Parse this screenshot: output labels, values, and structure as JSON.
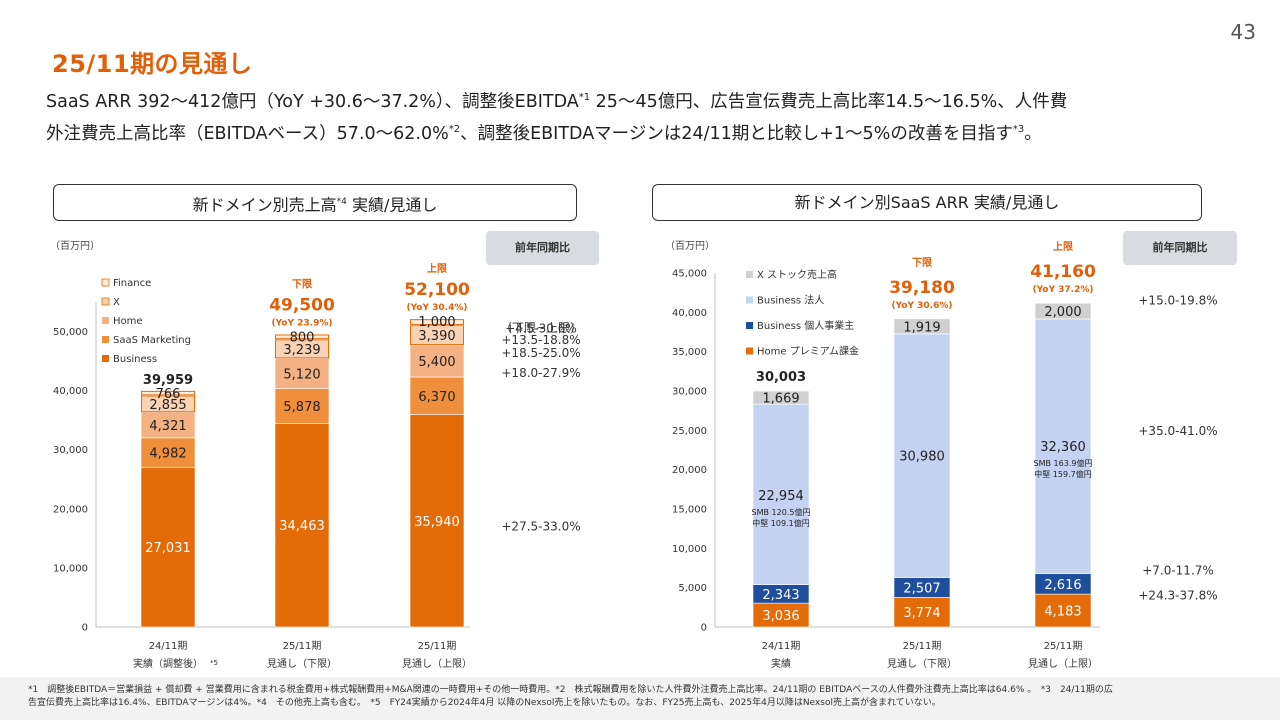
{
  "page_number": "43",
  "title": "25/11期の見通し",
  "subtitle": {
    "line1_a": "SaaS ARR 392〜412億円（YoY +30.6〜37.2%）、調整後EBITDA",
    "line1_sup": "*1",
    "line1_b": " 25〜45億円、広告宣伝費売上高比率14.5〜16.5%、人件費",
    "line2_a": "外注費売上高比率（EBITDAベース）57.0〜62.0%",
    "line2_sup": "*2",
    "line2_b": "、調整後EBITDAマージンは24/11期と比較し+1〜5%の改善を目指す",
    "line2_sup2": "*3",
    "line2_c": "。"
  },
  "yoy_header": "前年同期比",
  "colors": {
    "business": "#e36c09",
    "saas_marketing": "#ef8f3c",
    "home": "#f4b183",
    "x": "#fad2b4",
    "finance": "#fdecd9",
    "arr_home": "#e36c09",
    "arr_individual": "#1f4e9c",
    "arr_corporate": "#c5d3f3",
    "arr_xstock": "#d0d0d0",
    "accent": "#e0600a"
  },
  "chart_data": [
    {
      "type": "bar",
      "stacked": true,
      "title": "新ドメイン別売上高",
      "title_sup": "*4",
      "title_b": " 実績/見通し",
      "unit": "（百万円）",
      "ylim": [
        0,
        55000
      ],
      "yticks": [
        0,
        10000,
        20000,
        30000,
        40000,
        50000
      ],
      "ytick_labels": [
        "0",
        "10,000",
        "20,000",
        "30,000",
        "40,000",
        "50,000"
      ],
      "categories": [
        "24/11期",
        "25/11期",
        "25/11期"
      ],
      "category_sub": [
        "実績（調整後）",
        "見通し（下限）",
        "見通し（上限）"
      ],
      "category_note": "*5",
      "legend_position": "top-left",
      "series": [
        {
          "name": "Business",
          "color_key": "business",
          "values": [
            27031,
            34463,
            35940
          ],
          "labels": [
            "27,031",
            "34,463",
            "35,940"
          ]
        },
        {
          "name": "SaaS Marketing",
          "color_key": "saas_marketing",
          "values": [
            4982,
            5878,
            6370
          ],
          "labels": [
            "4,982",
            "5,878",
            "6,370"
          ]
        },
        {
          "name": "Home",
          "color_key": "home",
          "values": [
            4321,
            5120,
            5400
          ],
          "labels": [
            "4,321",
            "5,120",
            "5,400"
          ]
        },
        {
          "name": "X",
          "color_key": "x",
          "values": [
            2855,
            3239,
            3390
          ],
          "labels": [
            "2,855",
            "3,239",
            "3,390"
          ]
        },
        {
          "name": "Finance",
          "color_key": "finance",
          "values": [
            766,
            800,
            1000
          ],
          "labels": [
            "766",
            "800",
            "1,000"
          ]
        }
      ],
      "totals": [
        "39,959",
        "49,500",
        "52,100"
      ],
      "total_tags": [
        "",
        "下限",
        "上限"
      ],
      "total_yoy": [
        "",
        "(YoY 23.9%)",
        "(YoY 30.4%)"
      ],
      "yoy_ranges": [
        {
          "text": "（下限~上限）",
          "value": 50600
        },
        {
          "text": "+4.5-30.6%",
          "value": 50500
        },
        {
          "text": "+13.5-18.8%",
          "value": 48600
        },
        {
          "text": "+18.5-25.0%",
          "value": 46400
        },
        {
          "text": "+18.0-27.9%",
          "value": 43000
        },
        {
          "text": "+27.5-33.0%",
          "value": 17000
        }
      ]
    },
    {
      "type": "bar",
      "stacked": true,
      "title": "新ドメイン別SaaS ARR 実績/見通し",
      "unit": "（百万円）",
      "ylim": [
        0,
        45000
      ],
      "yticks": [
        0,
        5000,
        10000,
        15000,
        20000,
        25000,
        30000,
        35000,
        40000,
        45000
      ],
      "ytick_labels": [
        "0",
        "5,000",
        "10,000",
        "15,000",
        "20,000",
        "25,000",
        "30,000",
        "35,000",
        "40,000",
        "45,000"
      ],
      "categories": [
        "24/11期",
        "25/11期",
        "25/11期"
      ],
      "category_sub": [
        "実績",
        "見通し（下限）",
        "見通し（上限）"
      ],
      "legend_position": "top-left",
      "series": [
        {
          "name": "Home プレミアム課金",
          "color_key": "arr_home",
          "values": [
            3036,
            3774,
            4183
          ],
          "labels": [
            "3,036",
            "3,774",
            "4,183"
          ]
        },
        {
          "name": "Business 個人事業主",
          "color_key": "arr_individual",
          "values": [
            2343,
            2507,
            2616
          ],
          "labels": [
            "2,343",
            "2,507",
            "2,616"
          ]
        },
        {
          "name": "Business 法人",
          "color_key": "arr_corporate",
          "values": [
            22954,
            30980,
            32360
          ],
          "labels": [
            "22,954",
            "30,980",
            "32,360"
          ],
          "sublabels": [
            [
              "SMB 120.5億円",
              "中堅 109.1億円"
            ],
            [],
            [
              "SMB 163.9億円",
              "中堅 159.7億円"
            ]
          ]
        },
        {
          "name": "X ストック売上高",
          "color_key": "arr_xstock",
          "values": [
            1669,
            1919,
            2000
          ],
          "labels": [
            "1,669",
            "1,919",
            "2,000"
          ]
        }
      ],
      "totals": [
        "30,003",
        "39,180",
        "41,160"
      ],
      "total_tags": [
        "",
        "下限",
        "上限"
      ],
      "total_yoy": [
        "",
        "(YoY 30.6%)",
        "(YoY 37.2%)"
      ],
      "yoy_ranges": [
        {
          "text": "+15.0-19.8%",
          "value": 41500
        },
        {
          "text": "+35.0-41.0%",
          "value": 24900
        },
        {
          "text": "+7.0-11.7%",
          "value": 7200
        },
        {
          "text": "+24.3-37.8%",
          "value": 4000
        }
      ]
    }
  ],
  "footer": {
    "line1": "*1　調整後EBITDA＝営業損益 + 償却費 + 営業費用に含まれる税金費用+株式報酬費用+M&A関連の一時費用+その他一時費用。*2　株式報酬費用を除いた人件費外注費売上高比率。24/11期の EBITDAベースの人件費外注費売上高比率は64.6% 。　*3　24/11期の広",
    "line2": "告宣伝費売上高比率は16.4%、EBITDAマージンは4%。*4　その他売上高も含む。　*5　FY24実績から2024年4月 以降のNexsol売上を除いたもの。なお、FY25売上高も、2025年4月以降はNexsol売上高が含まれていない。"
  }
}
